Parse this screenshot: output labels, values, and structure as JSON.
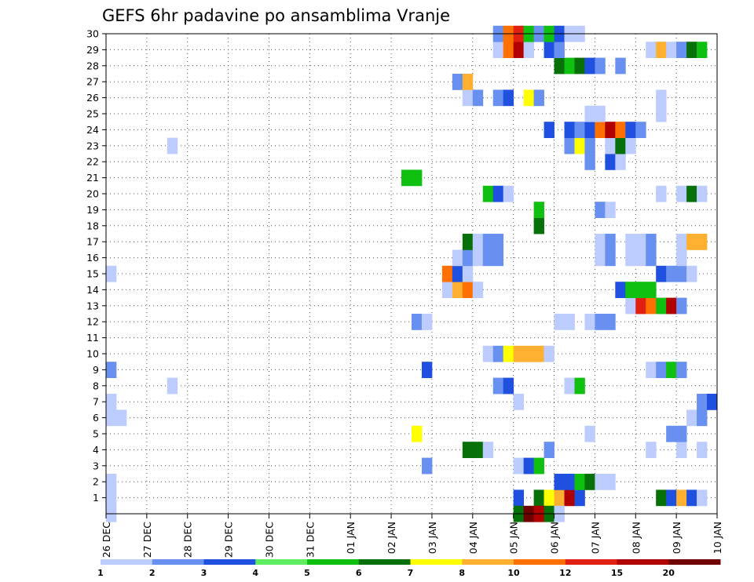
{
  "chart_data": {
    "type": "heatmap",
    "title": "GEFS 6hr padavine po ansamblima Vranje",
    "xlabel": "",
    "ylabel": "",
    "x_ticks": [
      "26 DEC",
      "27 DEC",
      "28 DEC",
      "29 DEC",
      "30 DEC",
      "31 DEC",
      "01 JAN",
      "02 JAN",
      "03 JAN",
      "04 JAN",
      "05 JAN",
      "06 JAN",
      "07 JAN",
      "08 JAN",
      "09 JAN",
      "10 JAN"
    ],
    "y_ticks": [
      "1",
      "2",
      "3",
      "4",
      "5",
      "6",
      "7",
      "8",
      "9",
      "10",
      "11",
      "12",
      "13",
      "14",
      "15",
      "16",
      "17",
      "18",
      "19",
      "20",
      "21",
      "22",
      "23",
      "24",
      "25",
      "26",
      "27",
      "28",
      "29",
      "30"
    ],
    "x_range": [
      0,
      60
    ],
    "y_range": [
      0,
      30
    ],
    "grid": true,
    "colorbar": {
      "position": "bottom",
      "labels": [
        "1",
        "2",
        "3",
        "4",
        "5",
        "6",
        "7",
        "8",
        "10",
        "12",
        "15",
        "20"
      ],
      "colors": [
        "#bcccff",
        "#6890f0",
        "#2050e0",
        "#60ec60",
        "#10c010",
        "#087008",
        "#ffff00",
        "#ffb030",
        "#ff7000",
        "#e02010",
        "#b00000",
        "#700000"
      ]
    },
    "cells": [
      {
        "m": 1,
        "x": 0,
        "v": 1
      },
      {
        "m": 1,
        "x": 40,
        "v": 3
      },
      {
        "m": 1,
        "x": 42,
        "v": 6
      },
      {
        "m": 1,
        "x": 43,
        "v": 7
      },
      {
        "m": 1,
        "x": 44,
        "v": 8
      },
      {
        "m": 1,
        "x": 45,
        "v": 15
      },
      {
        "m": 1,
        "x": 46,
        "v": 3
      },
      {
        "m": 1,
        "x": 54,
        "v": 6
      },
      {
        "m": 1,
        "x": 55,
        "v": 3
      },
      {
        "m": 1,
        "x": 56,
        "v": 8
      },
      {
        "m": 1,
        "x": 57,
        "v": 3
      },
      {
        "m": 1,
        "x": 58,
        "v": 1
      },
      {
        "m": 2,
        "x": 0,
        "v": 1
      },
      {
        "m": 2,
        "x": 44,
        "v": 3
      },
      {
        "m": 2,
        "x": 45,
        "v": 3
      },
      {
        "m": 2,
        "x": 46,
        "v": 5
      },
      {
        "m": 2,
        "x": 47,
        "v": 6
      },
      {
        "m": 2,
        "x": 48,
        "v": 1
      },
      {
        "m": 2,
        "x": 49,
        "v": 1
      },
      {
        "m": 3,
        "x": 31,
        "v": 2
      },
      {
        "m": 3,
        "x": 40,
        "v": 1
      },
      {
        "m": 3,
        "x": 41,
        "v": 3
      },
      {
        "m": 3,
        "x": 42,
        "v": 5
      },
      {
        "m": 4,
        "x": 35,
        "v": 6
      },
      {
        "m": 4,
        "x": 36,
        "v": 6
      },
      {
        "m": 4,
        "x": 37,
        "v": 1
      },
      {
        "m": 4,
        "x": 43,
        "v": 2
      },
      {
        "m": 4,
        "x": 53,
        "v": 1
      },
      {
        "m": 4,
        "x": 56,
        "v": 1
      },
      {
        "m": 4,
        "x": 58,
        "v": 1
      },
      {
        "m": 5,
        "x": 30,
        "v": 7
      },
      {
        "m": 5,
        "x": 47,
        "v": 1
      },
      {
        "m": 5,
        "x": 55,
        "v": 2
      },
      {
        "m": 5,
        "x": 56,
        "v": 2
      },
      {
        "m": 6,
        "x": 0,
        "v": 1
      },
      {
        "m": 6,
        "x": 1,
        "v": 1
      },
      {
        "m": 6,
        "x": 57,
        "v": 1
      },
      {
        "m": 6,
        "x": 58,
        "v": 2
      },
      {
        "m": 7,
        "x": 0,
        "v": 1
      },
      {
        "m": 7,
        "x": 40,
        "v": 1
      },
      {
        "m": 7,
        "x": 58,
        "v": 2
      },
      {
        "m": 7,
        "x": 59,
        "v": 3
      },
      {
        "m": 8,
        "x": 6,
        "v": 1
      },
      {
        "m": 8,
        "x": 38,
        "v": 2
      },
      {
        "m": 8,
        "x": 39,
        "v": 3
      },
      {
        "m": 8,
        "x": 45,
        "v": 1
      },
      {
        "m": 8,
        "x": 46,
        "v": 5
      },
      {
        "m": 9,
        "x": 0,
        "v": 2
      },
      {
        "m": 9,
        "x": 31,
        "v": 3
      },
      {
        "m": 9,
        "x": 53,
        "v": 1
      },
      {
        "m": 9,
        "x": 54,
        "v": 2
      },
      {
        "m": 9,
        "x": 55,
        "v": 5
      },
      {
        "m": 9,
        "x": 56,
        "v": 2
      },
      {
        "m": 10,
        "x": 37,
        "v": 1
      },
      {
        "m": 10,
        "x": 38,
        "v": 2
      },
      {
        "m": 10,
        "x": 39,
        "v": 7
      },
      {
        "m": 10,
        "x": 40,
        "v": 8
      },
      {
        "m": 10,
        "x": 41,
        "v": 8
      },
      {
        "m": 10,
        "x": 42,
        "v": 8
      },
      {
        "m": 10,
        "x": 43,
        "v": 1
      },
      {
        "m": 12,
        "x": 30,
        "v": 2
      },
      {
        "m": 12,
        "x": 31,
        "v": 1
      },
      {
        "m": 12,
        "x": 44,
        "v": 1
      },
      {
        "m": 12,
        "x": 45,
        "v": 1
      },
      {
        "m": 12,
        "x": 47,
        "v": 1
      },
      {
        "m": 12,
        "x": 48,
        "v": 2
      },
      {
        "m": 12,
        "x": 49,
        "v": 2
      },
      {
        "m": 13,
        "x": 51,
        "v": 1
      },
      {
        "m": 13,
        "x": 52,
        "v": 12
      },
      {
        "m": 13,
        "x": 53,
        "v": 10
      },
      {
        "m": 13,
        "x": 54,
        "v": 5
      },
      {
        "m": 13,
        "x": 55,
        "v": 15
      },
      {
        "m": 13,
        "x": 56,
        "v": 2
      },
      {
        "m": 14,
        "x": 33,
        "v": 1
      },
      {
        "m": 14,
        "x": 34,
        "v": 8
      },
      {
        "m": 14,
        "x": 35,
        "v": 10
      },
      {
        "m": 14,
        "x": 36,
        "v": 1
      },
      {
        "m": 14,
        "x": 50,
        "v": 3
      },
      {
        "m": 14,
        "x": 51,
        "v": 5
      },
      {
        "m": 14,
        "x": 52,
        "v": 5
      },
      {
        "m": 14,
        "x": 53,
        "v": 5
      },
      {
        "m": 15,
        "x": 0,
        "v": 1
      },
      {
        "m": 15,
        "x": 33,
        "v": 10
      },
      {
        "m": 15,
        "x": 34,
        "v": 3
      },
      {
        "m": 15,
        "x": 35,
        "v": 1
      },
      {
        "m": 15,
        "x": 54,
        "v": 3
      },
      {
        "m": 15,
        "x": 55,
        "v": 2
      },
      {
        "m": 15,
        "x": 56,
        "v": 2
      },
      {
        "m": 15,
        "x": 57,
        "v": 1
      },
      {
        "m": 16,
        "x": 34,
        "v": 1
      },
      {
        "m": 16,
        "x": 35,
        "v": 2
      },
      {
        "m": 16,
        "x": 36,
        "v": 1
      },
      {
        "m": 16,
        "x": 37,
        "v": 2
      },
      {
        "m": 16,
        "x": 38,
        "v": 2
      },
      {
        "m": 16,
        "x": 48,
        "v": 1
      },
      {
        "m": 16,
        "x": 49,
        "v": 2
      },
      {
        "m": 16,
        "x": 51,
        "v": 1
      },
      {
        "m": 16,
        "x": 52,
        "v": 1
      },
      {
        "m": 16,
        "x": 53,
        "v": 2
      },
      {
        "m": 16,
        "x": 56,
        "v": 1
      },
      {
        "m": 17,
        "x": 35,
        "v": 6
      },
      {
        "m": 17,
        "x": 36,
        "v": 1
      },
      {
        "m": 17,
        "x": 37,
        "v": 2
      },
      {
        "m": 17,
        "x": 38,
        "v": 2
      },
      {
        "m": 17,
        "x": 48,
        "v": 1
      },
      {
        "m": 17,
        "x": 49,
        "v": 2
      },
      {
        "m": 17,
        "x": 51,
        "v": 1
      },
      {
        "m": 17,
        "x": 52,
        "v": 1
      },
      {
        "m": 17,
        "x": 53,
        "v": 2
      },
      {
        "m": 17,
        "x": 56,
        "v": 1
      },
      {
        "m": 17,
        "x": 57,
        "v": 8
      },
      {
        "m": 17,
        "x": 58,
        "v": 8
      },
      {
        "m": 18,
        "x": 42,
        "v": 6
      },
      {
        "m": 19,
        "x": 42,
        "v": 5
      },
      {
        "m": 19,
        "x": 48,
        "v": 2
      },
      {
        "m": 19,
        "x": 49,
        "v": 1
      },
      {
        "m": 20,
        "x": 37,
        "v": 5
      },
      {
        "m": 20,
        "x": 38,
        "v": 3
      },
      {
        "m": 20,
        "x": 39,
        "v": 1
      },
      {
        "m": 20,
        "x": 54,
        "v": 1
      },
      {
        "m": 20,
        "x": 56,
        "v": 1
      },
      {
        "m": 20,
        "x": 57,
        "v": 6
      },
      {
        "m": 20,
        "x": 58,
        "v": 1
      },
      {
        "m": 21,
        "x": 29,
        "v": 5
      },
      {
        "m": 21,
        "x": 30,
        "v": 5
      },
      {
        "m": 22,
        "x": 47,
        "v": 2
      },
      {
        "m": 22,
        "x": 49,
        "v": 3
      },
      {
        "m": 22,
        "x": 50,
        "v": 1
      },
      {
        "m": 23,
        "x": 6,
        "v": 1
      },
      {
        "m": 23,
        "x": 45,
        "v": 2
      },
      {
        "m": 23,
        "x": 46,
        "v": 7
      },
      {
        "m": 23,
        "x": 47,
        "v": 2
      },
      {
        "m": 23,
        "x": 49,
        "v": 1
      },
      {
        "m": 23,
        "x": 50,
        "v": 6
      },
      {
        "m": 23,
        "x": 51,
        "v": 1
      },
      {
        "m": 24,
        "x": 43,
        "v": 3
      },
      {
        "m": 24,
        "x": 45,
        "v": 3
      },
      {
        "m": 24,
        "x": 46,
        "v": 2
      },
      {
        "m": 24,
        "x": 47,
        "v": 3
      },
      {
        "m": 24,
        "x": 48,
        "v": 10
      },
      {
        "m": 24,
        "x": 49,
        "v": 15
      },
      {
        "m": 24,
        "x": 50,
        "v": 10
      },
      {
        "m": 24,
        "x": 51,
        "v": 3
      },
      {
        "m": 24,
        "x": 52,
        "v": 2
      },
      {
        "m": 25,
        "x": 47,
        "v": 1
      },
      {
        "m": 25,
        "x": 48,
        "v": 1
      },
      {
        "m": 25,
        "x": 54,
        "v": 1
      },
      {
        "m": 26,
        "x": 35,
        "v": 1
      },
      {
        "m": 26,
        "x": 36,
        "v": 2
      },
      {
        "m": 26,
        "x": 38,
        "v": 2
      },
      {
        "m": 26,
        "x": 39,
        "v": 3
      },
      {
        "m": 26,
        "x": 41,
        "v": 7
      },
      {
        "m": 26,
        "x": 42,
        "v": 2
      },
      {
        "m": 26,
        "x": 54,
        "v": 1
      },
      {
        "m": 27,
        "x": 34,
        "v": 2
      },
      {
        "m": 27,
        "x": 35,
        "v": 8
      },
      {
        "m": 28,
        "x": 44,
        "v": 6
      },
      {
        "m": 28,
        "x": 45,
        "v": 5
      },
      {
        "m": 28,
        "x": 46,
        "v": 6
      },
      {
        "m": 28,
        "x": 47,
        "v": 3
      },
      {
        "m": 28,
        "x": 48,
        "v": 2
      },
      {
        "m": 28,
        "x": 50,
        "v": 2
      },
      {
        "m": 29,
        "x": 38,
        "v": 1
      },
      {
        "m": 29,
        "x": 39,
        "v": 10
      },
      {
        "m": 29,
        "x": 40,
        "v": 15
      },
      {
        "m": 29,
        "x": 41,
        "v": 1
      },
      {
        "m": 29,
        "x": 43,
        "v": 3
      },
      {
        "m": 29,
        "x": 44,
        "v": 2
      },
      {
        "m": 29,
        "x": 53,
        "v": 1
      },
      {
        "m": 29,
        "x": 54,
        "v": 8
      },
      {
        "m": 29,
        "x": 55,
        "v": 1
      },
      {
        "m": 29,
        "x": 56,
        "v": 2
      },
      {
        "m": 29,
        "x": 57,
        "v": 6
      },
      {
        "m": 29,
        "x": 58,
        "v": 5
      },
      {
        "m": 30,
        "x": 38,
        "v": 2
      },
      {
        "m": 30,
        "x": 39,
        "v": 10
      },
      {
        "m": 30,
        "x": 40,
        "v": 12
      },
      {
        "m": 30,
        "x": 41,
        "v": 5
      },
      {
        "m": 30,
        "x": 42,
        "v": 2
      },
      {
        "m": 30,
        "x": 43,
        "v": 5
      },
      {
        "m": 30,
        "x": 44,
        "v": 3
      },
      {
        "m": 30,
        "x": 45,
        "v": 1
      },
      {
        "m": 30,
        "x": 46,
        "v": 1
      },
      {
        "m": 0,
        "x": 0,
        "v": 1
      },
      {
        "m": 0,
        "x": 40,
        "v": 6
      },
      {
        "m": 0,
        "x": 41,
        "v": 20
      },
      {
        "m": 0,
        "x": 42,
        "v": 15
      },
      {
        "m": 0,
        "x": 43,
        "v": 6
      },
      {
        "m": 0,
        "x": 44,
        "v": 1
      }
    ]
  }
}
